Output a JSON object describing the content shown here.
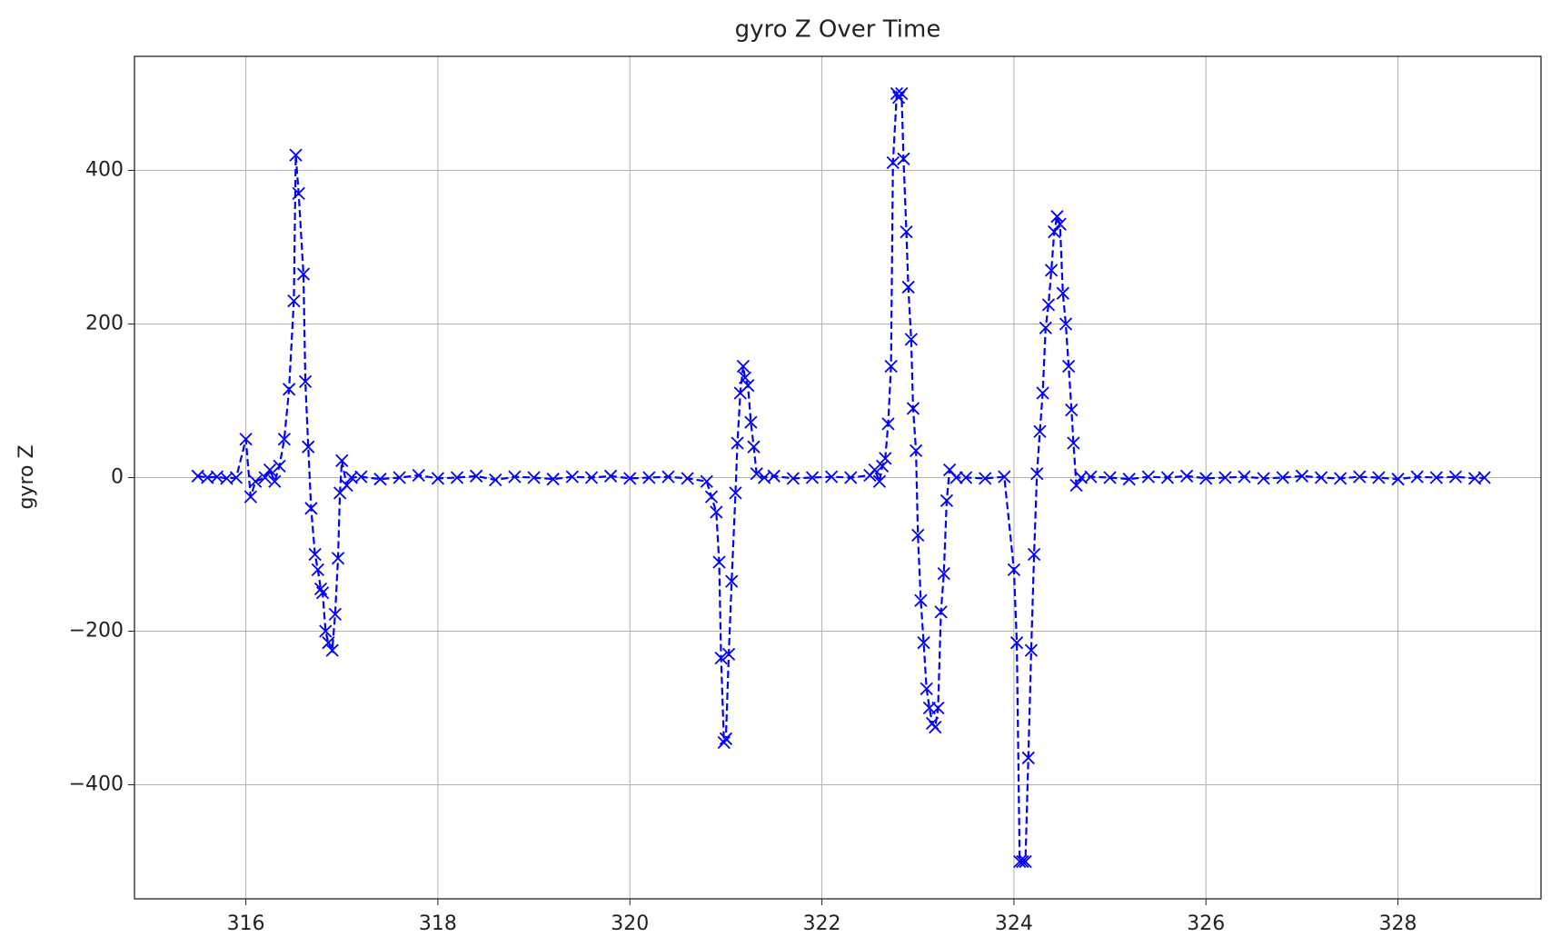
{
  "chart_data": {
    "type": "line",
    "title": "gyro Z Over Time",
    "y_label": "gyro Z",
    "color": "#0000ff",
    "line_style": "dashed",
    "marker": "x",
    "grid": true,
    "xlim": [
      314.84,
      329.49
    ],
    "ylim": [
      -548.5,
      548.5
    ],
    "xticks": [
      316,
      318,
      320,
      322,
      324,
      326,
      328
    ],
    "yticks": [
      {
        "value": -400,
        "label": "−400"
      },
      {
        "value": -200,
        "label": "−200"
      },
      0,
      200,
      400
    ],
    "x": [
      315.5,
      315.6,
      315.7,
      315.8,
      315.9,
      316.0,
      316.05,
      316.1,
      316.2,
      316.25,
      316.3,
      316.35,
      316.4,
      316.45,
      316.5,
      316.52,
      316.55,
      316.6,
      316.62,
      316.65,
      316.68,
      316.72,
      316.75,
      316.78,
      316.8,
      316.83,
      316.86,
      316.9,
      316.93,
      316.96,
      316.98,
      317.0,
      317.05,
      317.1,
      317.2,
      317.4,
      317.6,
      317.8,
      318.0,
      318.2,
      318.4,
      318.6,
      318.8,
      319.0,
      319.2,
      319.4,
      319.6,
      319.8,
      320.0,
      320.2,
      320.4,
      320.6,
      320.8,
      320.85,
      320.9,
      320.93,
      320.95,
      320.98,
      321.0,
      321.03,
      321.06,
      321.1,
      321.12,
      321.15,
      321.18,
      321.2,
      321.23,
      321.26,
      321.29,
      321.32,
      321.4,
      321.5,
      321.7,
      321.9,
      322.1,
      322.3,
      322.5,
      322.55,
      322.6,
      322.63,
      322.66,
      322.69,
      322.72,
      322.74,
      322.78,
      322.8,
      322.83,
      322.85,
      322.88,
      322.9,
      322.93,
      322.95,
      322.98,
      323.0,
      323.03,
      323.06,
      323.09,
      323.12,
      323.15,
      323.18,
      323.21,
      323.24,
      323.27,
      323.3,
      323.33,
      323.4,
      323.5,
      323.7,
      323.9,
      324.0,
      324.03,
      324.06,
      324.09,
      324.12,
      324.15,
      324.18,
      324.21,
      324.24,
      324.27,
      324.3,
      324.33,
      324.36,
      324.39,
      324.42,
      324.45,
      324.48,
      324.51,
      324.54,
      324.57,
      324.6,
      324.62,
      324.65,
      324.7,
      324.8,
      325.0,
      325.2,
      325.4,
      325.6,
      325.8,
      326.0,
      326.2,
      326.4,
      326.6,
      326.8,
      327.0,
      327.2,
      327.4,
      327.6,
      327.8,
      328.0,
      328.2,
      328.4,
      328.6,
      328.8,
      328.9
    ],
    "values": [
      2,
      0,
      1,
      -1,
      0,
      50,
      -25,
      -5,
      0,
      10,
      -5,
      15,
      50,
      115,
      230,
      420,
      370,
      265,
      125,
      40,
      -40,
      -100,
      -120,
      -145,
      -150,
      -200,
      -215,
      -225,
      -178,
      -105,
      -20,
      22,
      -10,
      0,
      1,
      -2,
      0,
      3,
      -1,
      0,
      2,
      -3,
      1,
      0,
      -2,
      1,
      0,
      2,
      -1,
      0,
      1,
      -1,
      -5,
      -25,
      -45,
      -110,
      -235,
      -345,
      -340,
      -230,
      -135,
      -20,
      45,
      110,
      145,
      130,
      120,
      72,
      40,
      5,
      0,
      2,
      -1,
      0,
      1,
      0,
      3,
      10,
      -5,
      15,
      25,
      70,
      145,
      410,
      500,
      495,
      500,
      415,
      320,
      248,
      180,
      90,
      35,
      -75,
      -160,
      -215,
      -275,
      -300,
      -320,
      -325,
      -300,
      -175,
      -125,
      -30,
      10,
      0,
      0,
      -1,
      1,
      -120,
      -215,
      -500,
      -500,
      -500,
      -365,
      -225,
      -100,
      5,
      60,
      110,
      195,
      225,
      270,
      320,
      340,
      330,
      240,
      200,
      145,
      88,
      45,
      -10,
      0,
      1,
      0,
      -2,
      1,
      0,
      2,
      -1,
      0,
      1,
      -1,
      0,
      2,
      0,
      -1,
      1,
      0,
      -2,
      1,
      0,
      1,
      -1,
      0
    ]
  }
}
